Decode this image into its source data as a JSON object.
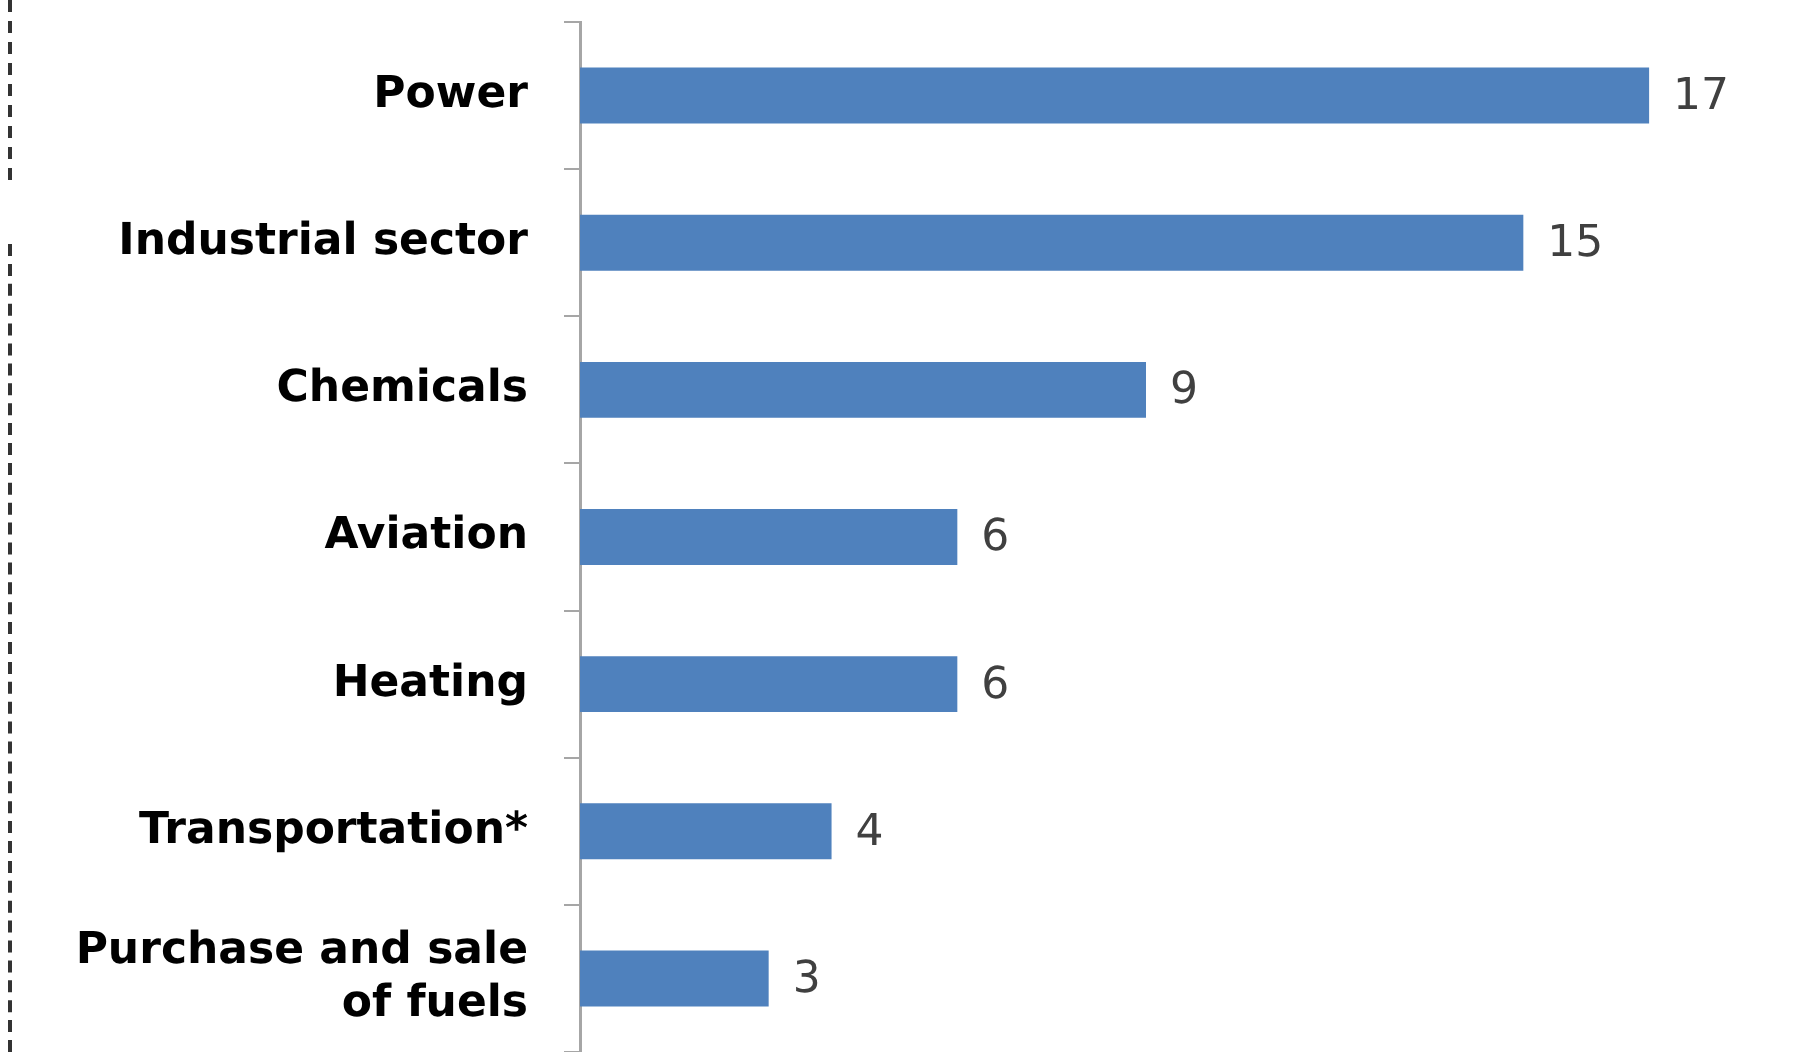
{
  "chart_data": {
    "type": "bar",
    "orientation": "horizontal",
    "categories": [
      "Power",
      "Industrial sector",
      "Chemicals",
      "Aviation",
      "Heating",
      "Transportation*",
      "Purchase and sale of fuels"
    ],
    "values": [
      17,
      15,
      9,
      6,
      6,
      4,
      3
    ],
    "color": "#4f81bd",
    "data_labels": true,
    "grid": false,
    "legend": false,
    "tick_labels": "y"
  }
}
